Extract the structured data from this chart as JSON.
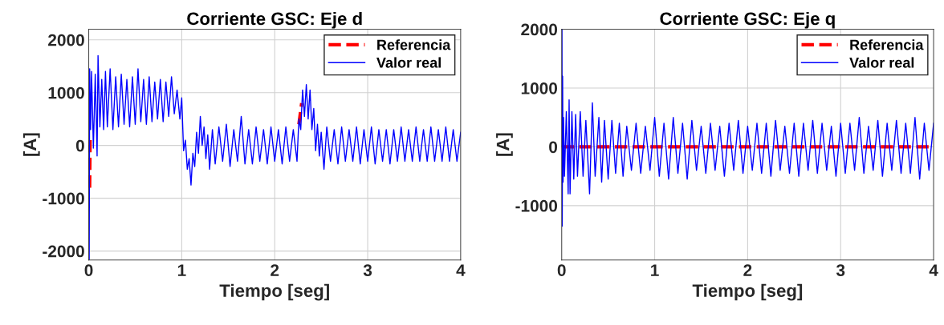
{
  "chart_data": [
    {
      "type": "line",
      "title": "Corriente GSC: Eje d",
      "xlabel": "Tiempo [seg]",
      "ylabel": "[A]",
      "xlim": [
        0,
        4
      ],
      "xticks": [
        0,
        1,
        2,
        3,
        4
      ],
      "ylim": [
        -2170,
        2200
      ],
      "yticks": [
        -2000,
        -1000,
        0,
        1000,
        2000
      ],
      "grid": true,
      "legend": "top right",
      "series": [
        {
          "name": "Referencia",
          "color": "#ff0000",
          "line_style": "dashed",
          "x": [
            0.01,
            0.015,
            0.02,
            0.5,
            2.26,
            2.29
          ],
          "values": [
            -800,
            100,
            null,
            null,
            400,
            800
          ]
        },
        {
          "name": "Valor real",
          "color": "#0000ff",
          "line_style": "solid",
          "x": [
            0,
            0.005,
            0.01,
            0.02,
            0.03,
            0.05,
            0.07,
            0.09,
            0.1,
            0.12,
            0.14,
            0.16,
            0.18,
            0.2,
            0.23,
            0.26,
            0.29,
            0.32,
            0.35,
            0.38,
            0.41,
            0.44,
            0.47,
            0.5,
            0.53,
            0.56,
            0.59,
            0.62,
            0.65,
            0.68,
            0.71,
            0.74,
            0.77,
            0.8,
            0.83,
            0.86,
            0.89,
            0.92,
            0.95,
            0.98,
            1.0,
            1.02,
            1.04,
            1.06,
            1.08,
            1.1,
            1.12,
            1.14,
            1.16,
            1.18,
            1.2,
            1.22,
            1.24,
            1.26,
            1.28,
            1.3,
            1.33,
            1.36,
            1.4,
            1.44,
            1.48,
            1.52,
            1.56,
            1.6,
            1.64,
            1.68,
            1.72,
            1.76,
            1.8,
            1.84,
            1.88,
            1.92,
            1.96,
            2.0,
            2.04,
            2.08,
            2.12,
            2.16,
            2.2,
            2.24,
            2.26,
            2.28,
            2.3,
            2.32,
            2.34,
            2.36,
            2.38,
            2.4,
            2.42,
            2.44,
            2.46,
            2.48,
            2.5,
            2.53,
            2.56,
            2.6,
            2.64,
            2.68,
            2.72,
            2.76,
            2.8,
            2.84,
            2.88,
            2.92,
            2.96,
            3.0,
            3.04,
            3.08,
            3.12,
            3.16,
            3.2,
            3.24,
            3.28,
            3.32,
            3.36,
            3.4,
            3.44,
            3.48,
            3.52,
            3.56,
            3.6,
            3.64,
            3.68,
            3.72,
            3.76,
            3.8,
            3.84,
            3.88,
            3.92,
            3.96,
            4.0
          ],
          "values": [
            0,
            -2170,
            1450,
            300,
            1400,
            -50,
            1350,
            -200,
            1700,
            350,
            1250,
            300,
            1400,
            350,
            1450,
            300,
            1300,
            350,
            1350,
            400,
            1250,
            350,
            1300,
            400,
            1450,
            450,
            1250,
            400,
            1300,
            450,
            1200,
            500,
            1250,
            450,
            1200,
            550,
            1300,
            600,
            1050,
            500,
            900,
            -100,
            100,
            -450,
            -250,
            -750,
            -150,
            -400,
            250,
            -150,
            550,
            0,
            350,
            -250,
            200,
            -450,
            300,
            -350,
            350,
            -300,
            400,
            -400,
            300,
            -300,
            550,
            -350,
            300,
            -350,
            350,
            -300,
            300,
            -350,
            350,
            -300,
            300,
            -350,
            350,
            -300,
            300,
            -300,
            500,
            300,
            1050,
            550,
            1150,
            500,
            1050,
            300,
            700,
            -100,
            400,
            -200,
            250,
            -450,
            350,
            -300,
            300,
            -350,
            350,
            -300,
            300,
            -300,
            350,
            -350,
            300,
            -300,
            350,
            -350,
            300,
            -300,
            300,
            -350,
            300,
            -300,
            350,
            -300,
            300,
            -300,
            350,
            -300,
            300,
            -300,
            350,
            -300,
            300,
            -300,
            350,
            -300,
            300,
            -300,
            250
          ]
        }
      ]
    },
    {
      "type": "line",
      "title": "Corriente GSC: Eje q",
      "xlabel": "Tiempo [seg]",
      "ylabel": "[A]",
      "xlim": [
        0,
        4
      ],
      "xticks": [
        0,
        1,
        2,
        3,
        4
      ],
      "ylim": [
        -1925,
        2000
      ],
      "yticks": [
        -1000,
        0,
        1000,
        2000
      ],
      "grid": true,
      "legend": "top right",
      "series": [
        {
          "name": "Referencia",
          "color": "#ff0000",
          "line_style": "dashed",
          "x": [
            0,
            4
          ],
          "values": [
            0,
            0
          ]
        },
        {
          "name": "Valor real",
          "color": "#0000ff",
          "line_style": "solid",
          "x": [
            0,
            0.003,
            0.006,
            0.01,
            0.015,
            0.02,
            0.03,
            0.05,
            0.07,
            0.08,
            0.09,
            0.11,
            0.13,
            0.15,
            0.17,
            0.2,
            0.23,
            0.26,
            0.3,
            0.33,
            0.36,
            0.4,
            0.43,
            0.46,
            0.5,
            0.54,
            0.58,
            0.62,
            0.66,
            0.7,
            0.75,
            0.8,
            0.85,
            0.9,
            0.95,
            1.0,
            1.05,
            1.1,
            1.15,
            1.2,
            1.25,
            1.3,
            1.35,
            1.4,
            1.45,
            1.5,
            1.55,
            1.6,
            1.65,
            1.7,
            1.75,
            1.8,
            1.85,
            1.9,
            1.95,
            2.0,
            2.05,
            2.1,
            2.15,
            2.2,
            2.25,
            2.3,
            2.35,
            2.4,
            2.45,
            2.5,
            2.55,
            2.6,
            2.65,
            2.7,
            2.75,
            2.8,
            2.85,
            2.9,
            2.95,
            3.0,
            3.05,
            3.1,
            3.15,
            3.2,
            3.25,
            3.3,
            3.35,
            3.4,
            3.45,
            3.5,
            3.55,
            3.6,
            3.65,
            3.7,
            3.75,
            3.8,
            3.85,
            3.9,
            3.95,
            4.0
          ],
          "values": [
            0,
            2000,
            -1350,
            1200,
            -600,
            500,
            -500,
            600,
            -800,
            800,
            -800,
            600,
            -550,
            550,
            -500,
            600,
            -500,
            450,
            -800,
            750,
            -500,
            500,
            -600,
            450,
            -550,
            450,
            -450,
            400,
            -500,
            350,
            -400,
            400,
            -450,
            350,
            -400,
            500,
            -500,
            400,
            -550,
            500,
            -450,
            400,
            -550,
            450,
            -400,
            350,
            -450,
            400,
            -400,
            350,
            -500,
            400,
            -400,
            450,
            -450,
            350,
            -400,
            400,
            -450,
            400,
            -500,
            450,
            -400,
            350,
            -450,
            400,
            -500,
            400,
            -400,
            450,
            -450,
            400,
            -400,
            350,
            -500,
            400,
            -450,
            400,
            -400,
            500,
            -450,
            350,
            -400,
            450,
            -500,
            400,
            -400,
            450,
            -450,
            400,
            -450,
            500,
            -550,
            400,
            -400,
            400
          ]
        }
      ]
    }
  ]
}
